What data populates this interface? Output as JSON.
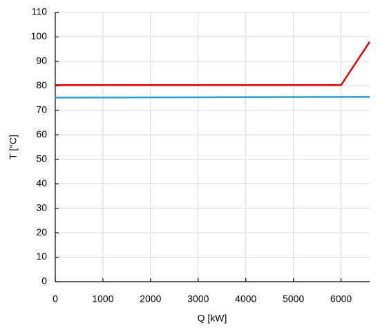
{
  "chart_data": {
    "type": "line",
    "xlabel": "Q [kW]",
    "ylabel": "T [°C]",
    "series": [
      {
        "color": "#e00000",
        "x": [
          0,
          6000,
          6600
        ],
        "values": [
          80.3,
          80.3,
          98
        ]
      },
      {
        "color": "#2e9bd0",
        "x": [
          0,
          6600
        ],
        "values": [
          75.2,
          75.5
        ]
      }
    ],
    "xlim": [
      0,
      6600
    ],
    "xticks": [
      0,
      1000,
      2000,
      3000,
      4000,
      5000,
      6000
    ],
    "ylim": [
      0,
      110
    ],
    "yticks": [
      0,
      10,
      20,
      30,
      40,
      50,
      60,
      70,
      80,
      90,
      100,
      110
    ],
    "grid": true
  }
}
